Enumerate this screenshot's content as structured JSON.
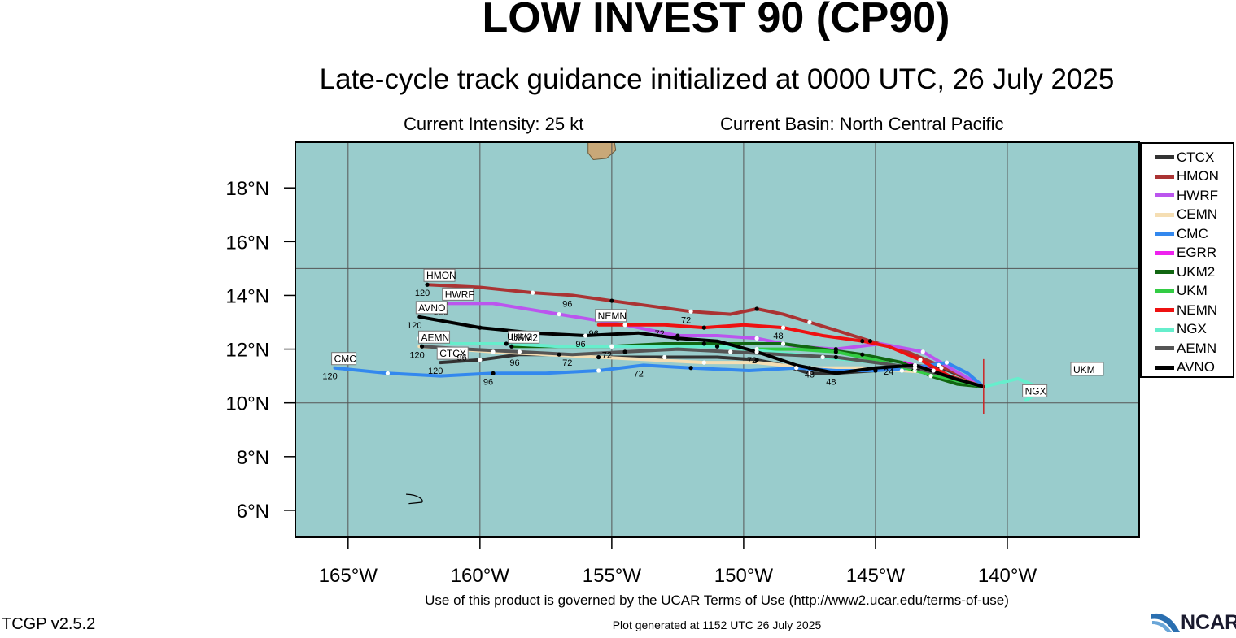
{
  "header": {
    "title": "LOW INVEST 90 (CP90)",
    "subtitle": "Late-cycle track guidance initialized at 0000 UTC, 26 July 2025",
    "intensity": "Current Intensity: 25 kt",
    "basin": "Current Basin: North Central Pacific"
  },
  "footer": {
    "terms": "Use of this product is governed by the UCAR Terms of Use (http://www2.ucar.edu/terms-of-use)",
    "generated": "Plot generated at 1152 UTC   26 July 2025",
    "version": "TCGP v2.5.2",
    "logo_text": "NCAR"
  },
  "map": {
    "lon_range": [
      -167,
      -135
    ],
    "lat_range": [
      5,
      19.7
    ],
    "lon_ticks": [
      -165,
      -160,
      -155,
      -150,
      -145,
      -140
    ],
    "lon_tick_labels": [
      "165°W",
      "160°W",
      "155°W",
      "150°W",
      "145°W",
      "140°W"
    ],
    "lat_ticks": [
      6,
      8,
      10,
      12,
      14,
      16,
      18
    ],
    "lat_tick_labels": [
      "6°N",
      "8°N",
      "10°N",
      "12°N",
      "14°N",
      "16°N",
      "18°N"
    ],
    "grid_lons": [
      -165,
      -160,
      -155,
      -150,
      -145,
      -140
    ],
    "grid_lats": [
      5,
      10,
      15
    ],
    "ocean_color": "#99cccc",
    "land_color": "#c8a878",
    "current_position": [
      -140.9,
      10.6
    ],
    "off_map_label": "UKM"
  },
  "chart_data": {
    "type": "track-map",
    "series": [
      {
        "name": "CTCX",
        "color": "#333333",
        "end_label": "CTCX",
        "points": [
          [
            -140.9,
            10.6
          ],
          [
            -141.5,
            10.9
          ],
          [
            -142.5,
            11.3
          ],
          [
            -143.7,
            11.4
          ],
          [
            -145,
            11.2
          ],
          [
            -146.5,
            11.1
          ],
          [
            -147.5,
            11.1
          ],
          [
            -148.5,
            11.4
          ],
          [
            -149.5,
            11.6
          ],
          [
            -151,
            11.7
          ],
          [
            -153,
            11.7
          ],
          [
            -155.5,
            11.7
          ],
          [
            -157,
            11.8
          ],
          [
            -158.5,
            11.8
          ],
          [
            -160,
            11.6
          ],
          [
            -161.5,
            11.5
          ]
        ],
        "taus": [
          {
            "pt": 13,
            "label": "96"
          },
          {
            "pt": 15,
            "label": "120"
          }
        ]
      },
      {
        "name": "HMON",
        "color": "#aa3333",
        "end_label": "HMON",
        "points": [
          [
            -140.9,
            10.6
          ],
          [
            -141.7,
            11.0
          ],
          [
            -142.6,
            11.4
          ],
          [
            -143.8,
            11.9
          ],
          [
            -145.2,
            12.3
          ],
          [
            -146.5,
            12.7
          ],
          [
            -147.5,
            13.0
          ],
          [
            -148.5,
            13.3
          ],
          [
            -149.5,
            13.5
          ],
          [
            -150.5,
            13.3
          ],
          [
            -152,
            13.4
          ],
          [
            -153.5,
            13.6
          ],
          [
            -155,
            13.8
          ],
          [
            -156.5,
            14.0
          ],
          [
            -158,
            14.1
          ],
          [
            -160,
            14.3
          ],
          [
            -162,
            14.4
          ]
        ],
        "taus": [
          {
            "pt": 10,
            "label": "72"
          },
          {
            "pt": 13,
            "label": "96"
          },
          {
            "pt": 16,
            "label": "120"
          }
        ]
      },
      {
        "name": "HWRF",
        "color": "#bb55ee",
        "end_label": "HWRF",
        "points": [
          [
            -140.9,
            10.6
          ],
          [
            -142,
            11.2
          ],
          [
            -143.2,
            11.9
          ],
          [
            -144.8,
            12.2
          ],
          [
            -146.5,
            12.0
          ],
          [
            -148,
            12.1
          ],
          [
            -149.5,
            12.4
          ],
          [
            -151,
            12.5
          ],
          [
            -152.5,
            12.5
          ],
          [
            -154.5,
            12.9
          ],
          [
            -157,
            13.3
          ],
          [
            -159.5,
            13.7
          ],
          [
            -161.3,
            13.7
          ]
        ],
        "taus": [
          {
            "pt": 12,
            "label": "120"
          }
        ]
      },
      {
        "name": "CEMN",
        "color": "#f5deb3",
        "end_label": "",
        "points": [
          [
            -140.9,
            10.6
          ],
          [
            -142.5,
            11.1
          ],
          [
            -144,
            11.2
          ],
          [
            -145.5,
            11.3
          ],
          [
            -147.5,
            11.3
          ],
          [
            -149.5,
            11.5
          ],
          [
            -151.5,
            11.5
          ],
          [
            -153.5,
            11.6
          ],
          [
            -155.5,
            11.7
          ],
          [
            -157.5,
            11.8
          ],
          [
            -159.5,
            11.9
          ],
          [
            -162.3,
            12.1
          ]
        ],
        "taus": []
      },
      {
        "name": "CMC",
        "color": "#3388ee",
        "end_label": "CMC",
        "points": [
          [
            -140.9,
            10.6
          ],
          [
            -141.5,
            11.1
          ],
          [
            -142.3,
            11.5
          ],
          [
            -143.6,
            11.3
          ],
          [
            -145,
            11.2
          ],
          [
            -146.5,
            11.2
          ],
          [
            -148,
            11.3
          ],
          [
            -149.8,
            11.2
          ],
          [
            -152,
            11.3
          ],
          [
            -153.8,
            11.4
          ],
          [
            -155.5,
            11.2
          ],
          [
            -157.5,
            11.1
          ],
          [
            -159.5,
            11.1
          ],
          [
            -161.5,
            11.0
          ],
          [
            -163.5,
            11.1
          ],
          [
            -165.5,
            11.3
          ]
        ],
        "taus": [
          {
            "pt": 9,
            "label": "72"
          },
          {
            "pt": 12,
            "label": "96"
          },
          {
            "pt": 15,
            "label": "120"
          }
        ]
      },
      {
        "name": "EGRR",
        "color": "#ee22ee",
        "end_label": "",
        "points": [
          [
            -140.9,
            10.6
          ],
          [
            -141.8,
            10.8
          ],
          [
            -142.8,
            11.2
          ],
          [
            -143.9,
            11.5
          ]
        ],
        "taus": []
      },
      {
        "name": "UKM2",
        "color": "#116611",
        "end_label": "UKM2",
        "points": [
          [
            -140.9,
            10.6
          ],
          [
            -141.9,
            10.7
          ],
          [
            -142.9,
            11.0
          ],
          [
            -144,
            11.5
          ],
          [
            -145.5,
            11.8
          ],
          [
            -147,
            12.0
          ],
          [
            -148.5,
            12.2
          ],
          [
            -150,
            12.2
          ],
          [
            -151.5,
            12.2
          ],
          [
            -153,
            12.2
          ],
          [
            -155,
            12.1
          ],
          [
            -157,
            12.1
          ],
          [
            -158.8,
            12.1
          ]
        ],
        "taus": [
          {
            "pt": 10,
            "label": "72"
          }
        ]
      },
      {
        "name": "UKM",
        "color": "#33cc44",
        "end_label": "",
        "points": [
          [
            -140.9,
            10.6
          ],
          [
            -142.2,
            10.9
          ],
          [
            -143.5,
            11.2
          ],
          [
            -145,
            11.6
          ],
          [
            -146.5,
            11.9
          ],
          [
            -148,
            12.0
          ],
          [
            -149.5,
            12.0
          ]
        ],
        "taus": []
      },
      {
        "name": "NEMN",
        "color": "#ee1111",
        "end_label": "NEMN",
        "points": [
          [
            -140.9,
            10.6
          ],
          [
            -142.2,
            11.0
          ],
          [
            -143.3,
            11.6
          ],
          [
            -144.5,
            12.1
          ],
          [
            -145.5,
            12.3
          ],
          [
            -147,
            12.5
          ],
          [
            -148.5,
            12.8
          ],
          [
            -150,
            12.9
          ],
          [
            -151.5,
            12.8
          ],
          [
            -153,
            12.9
          ],
          [
            -154.5,
            12.9
          ],
          [
            -155.5,
            12.9
          ]
        ],
        "taus": [
          {
            "pt": 2,
            "label": "24"
          },
          {
            "pt": 6,
            "label": "48"
          },
          {
            "pt": 9,
            "label": "72"
          },
          {
            "pt": 11,
            "label": "96"
          }
        ]
      },
      {
        "name": "NGX",
        "color": "#66eecc",
        "end_label": "NGX",
        "points": [
          [
            -140.9,
            10.6
          ],
          [
            -139.6,
            10.9
          ],
          [
            -138.6,
            10.5
          ],
          [
            -139.3,
            10.1
          ]
        ],
        "taus": []
      },
      {
        "name": "NGX-west",
        "color": "#66eecc",
        "end_label": "",
        "points": [
          [
            -143.5,
            11.3
          ],
          [
            -145,
            11.5
          ],
          [
            -147,
            11.7
          ],
          [
            -149,
            11.9
          ],
          [
            -151,
            12.1
          ],
          [
            -153,
            12.1
          ],
          [
            -155,
            12.1
          ],
          [
            -157,
            12.1
          ],
          [
            -159,
            12.2
          ],
          [
            -161,
            12.2
          ],
          [
            -162.3,
            12.4
          ]
        ],
        "taus": []
      },
      {
        "name": "AEMN",
        "color": "#555555",
        "end_label": "AEMN",
        "points": [
          [
            -140.9,
            10.6
          ],
          [
            -142.3,
            11.0
          ],
          [
            -143.5,
            11.3
          ],
          [
            -145,
            11.5
          ],
          [
            -146.5,
            11.7
          ],
          [
            -148.5,
            11.8
          ],
          [
            -150.5,
            11.9
          ],
          [
            -152.5,
            12.0
          ],
          [
            -154.5,
            11.9
          ],
          [
            -156.5,
            11.8
          ],
          [
            -158.5,
            11.9
          ],
          [
            -160.5,
            12.0
          ],
          [
            -162.2,
            12.1
          ]
        ],
        "taus": [
          {
            "pt": 9,
            "label": "72"
          },
          {
            "pt": 11,
            "label": "96"
          },
          {
            "pt": 12,
            "label": "120"
          }
        ]
      },
      {
        "name": "AVNO",
        "color": "#000000",
        "end_label": "AVNO",
        "points": [
          [
            -140.9,
            10.6
          ],
          [
            -142,
            10.9
          ],
          [
            -143.5,
            11.4
          ],
          [
            -145,
            11.3
          ],
          [
            -146.5,
            11.1
          ],
          [
            -148,
            11.4
          ],
          [
            -149.5,
            11.9
          ],
          [
            -151,
            12.3
          ],
          [
            -152.5,
            12.4
          ],
          [
            -154,
            12.6
          ],
          [
            -156,
            12.5
          ],
          [
            -158,
            12.6
          ],
          [
            -160,
            12.8
          ],
          [
            -162.3,
            13.2
          ]
        ],
        "taus": [
          {
            "pt": 4,
            "label": "48"
          },
          {
            "pt": 6,
            "label": "72"
          },
          {
            "pt": 10,
            "label": "96"
          },
          {
            "pt": 13,
            "label": "120"
          }
        ]
      }
    ],
    "legend_order": [
      "CTCX",
      "HMON",
      "HWRF",
      "CEMN",
      "CMC",
      "EGRR",
      "UKM2",
      "UKM",
      "NEMN",
      "NGX",
      "AEMN",
      "AVNO"
    ],
    "legend_colors": [
      "#333333",
      "#aa3333",
      "#bb55ee",
      "#f5deb3",
      "#3388ee",
      "#ee22ee",
      "#116611",
      "#33cc44",
      "#ee1111",
      "#66eecc",
      "#555555",
      "#000000"
    ],
    "extra_labels": [
      {
        "text": "UKM2",
        "lon": -158.5,
        "lat": 12.35
      },
      {
        "text": "24",
        "lon": -144.5,
        "lat": 11.05
      },
      {
        "text": "48",
        "lon": -147.5,
        "lat": 10.95
      }
    ]
  }
}
